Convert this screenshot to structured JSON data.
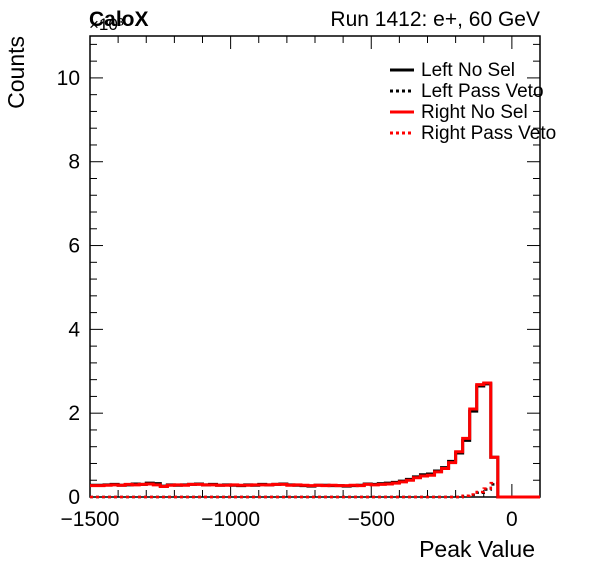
{
  "header": {
    "label": "CaloX",
    "run_info": "Run 1412: e+, 60 GeV",
    "exponent": "×10³"
  },
  "chart_data": {
    "type": "line",
    "xlabel": "Peak Value",
    "ylabel": "Counts",
    "xlim": [
      -1500,
      100
    ],
    "ylim": [
      0,
      11
    ],
    "y_scale_note": "×10³",
    "x_ticks": [
      -1500,
      -1000,
      -500,
      0
    ],
    "x_tick_labels": [
      "−1500",
      "−1000",
      "−500",
      "0"
    ],
    "y_ticks": [
      0,
      2,
      4,
      6,
      8,
      10
    ],
    "y_tick_labels": [
      "0",
      "2",
      "4",
      "6",
      "8",
      "10"
    ],
    "bin_width": 25,
    "bin_start": -1500,
    "legend_position": "top-right",
    "series": [
      {
        "name": "Left No Sel",
        "color": "#000000",
        "style": "solid",
        "values": [
          0.28,
          0.28,
          0.29,
          0.3,
          0.28,
          0.29,
          0.31,
          0.3,
          0.33,
          0.32,
          0.26,
          0.29,
          0.28,
          0.29,
          0.3,
          0.31,
          0.29,
          0.3,
          0.28,
          0.29,
          0.28,
          0.27,
          0.29,
          0.28,
          0.3,
          0.29,
          0.3,
          0.31,
          0.29,
          0.28,
          0.27,
          0.26,
          0.28,
          0.28,
          0.27,
          0.27,
          0.26,
          0.27,
          0.28,
          0.31,
          0.3,
          0.32,
          0.33,
          0.35,
          0.38,
          0.42,
          0.48,
          0.53,
          0.55,
          0.62,
          0.7,
          0.85,
          1.05,
          1.35,
          2.05,
          2.65,
          2.7,
          0.95,
          0.0,
          0.0,
          0.0,
          0.0,
          0.0,
          0.0
        ]
      },
      {
        "name": "Left Pass Veto",
        "color": "#000000",
        "style": "dotted",
        "values": [
          0,
          0,
          0,
          0,
          0,
          0,
          0,
          0,
          0,
          0,
          0,
          0,
          0,
          0,
          0,
          0,
          0,
          0,
          0,
          0,
          0,
          0,
          0,
          0,
          0,
          0,
          0,
          0,
          0,
          0,
          0,
          0,
          0,
          0,
          0,
          0,
          0,
          0,
          0,
          0,
          0,
          0,
          0,
          0,
          0,
          0,
          0,
          0,
          0,
          0,
          0,
          0,
          0,
          0.02,
          0.05,
          0.1,
          0.18,
          0.3,
          0,
          0,
          0,
          0,
          0,
          0
        ]
      },
      {
        "name": "Right No Sel",
        "color": "#ff0000",
        "style": "solid",
        "values": [
          0.27,
          0.27,
          0.28,
          0.29,
          0.28,
          0.3,
          0.29,
          0.3,
          0.31,
          0.29,
          0.25,
          0.28,
          0.29,
          0.28,
          0.3,
          0.3,
          0.29,
          0.29,
          0.28,
          0.28,
          0.29,
          0.28,
          0.28,
          0.29,
          0.29,
          0.29,
          0.3,
          0.3,
          0.28,
          0.29,
          0.28,
          0.27,
          0.28,
          0.27,
          0.28,
          0.27,
          0.27,
          0.28,
          0.27,
          0.3,
          0.29,
          0.3,
          0.31,
          0.33,
          0.36,
          0.4,
          0.46,
          0.5,
          0.52,
          0.6,
          0.68,
          0.82,
          1.08,
          1.4,
          2.1,
          2.68,
          2.72,
          0.95,
          0.0,
          0.0,
          0.0,
          0.0,
          0.0,
          0.0
        ]
      },
      {
        "name": "Right Pass Veto",
        "color": "#ff0000",
        "style": "dotted",
        "values": [
          0,
          0,
          0,
          0,
          0,
          0,
          0,
          0,
          0,
          0,
          0,
          0,
          0,
          0,
          0,
          0,
          0,
          0,
          0,
          0,
          0,
          0,
          0,
          0,
          0,
          0,
          0,
          0,
          0,
          0,
          0,
          0,
          0,
          0,
          0,
          0,
          0,
          0,
          0,
          0,
          0,
          0,
          0,
          0,
          0,
          0,
          0,
          0,
          0,
          0,
          0,
          0,
          0,
          0.03,
          0.06,
          0.12,
          0.2,
          0.33,
          0,
          0,
          0,
          0,
          0,
          0
        ]
      }
    ]
  }
}
